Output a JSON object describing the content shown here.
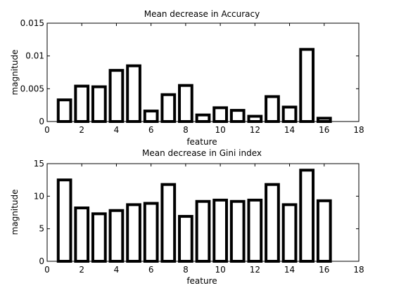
{
  "chart_data": [
    {
      "type": "bar",
      "title": "Mean decrease in Accuracy",
      "xlabel": "feature",
      "ylabel": "magnitude",
      "x": [
        1,
        2,
        3,
        4,
        5,
        6,
        7,
        8,
        9,
        10,
        11,
        12,
        13,
        14,
        15,
        16
      ],
      "values": [
        0.0033,
        0.0054,
        0.0053,
        0.0078,
        0.0085,
        0.0016,
        0.0041,
        0.0055,
        0.001,
        0.0021,
        0.0017,
        0.0008,
        0.0038,
        0.0022,
        0.011,
        0.0005
      ],
      "xlim": [
        0,
        18
      ],
      "ylim": [
        0,
        0.015
      ],
      "xticks": [
        "0",
        "2",
        "4",
        "6",
        "8",
        "10",
        "12",
        "14",
        "16",
        "18"
      ],
      "yticks": [
        "0",
        "0.005",
        "0.01",
        "0.015"
      ],
      "grid": false,
      "color": "#000000"
    },
    {
      "type": "bar",
      "title": "Mean decrease in Gini index",
      "xlabel": "feature",
      "ylabel": "magnitude",
      "x": [
        1,
        2,
        3,
        4,
        5,
        6,
        7,
        8,
        9,
        10,
        11,
        12,
        13,
        14,
        15,
        16
      ],
      "values": [
        12.5,
        8.2,
        7.3,
        7.8,
        8.7,
        8.9,
        11.8,
        6.9,
        9.2,
        9.4,
        9.2,
        9.4,
        11.8,
        8.7,
        14.0,
        9.3
      ],
      "xlim": [
        0,
        18
      ],
      "ylim": [
        0,
        15
      ],
      "xticks": [
        "0",
        "2",
        "4",
        "6",
        "8",
        "10",
        "12",
        "14",
        "16",
        "18"
      ],
      "yticks": [
        "0",
        "5",
        "10",
        "15"
      ],
      "grid": false,
      "color": "#000000"
    }
  ]
}
